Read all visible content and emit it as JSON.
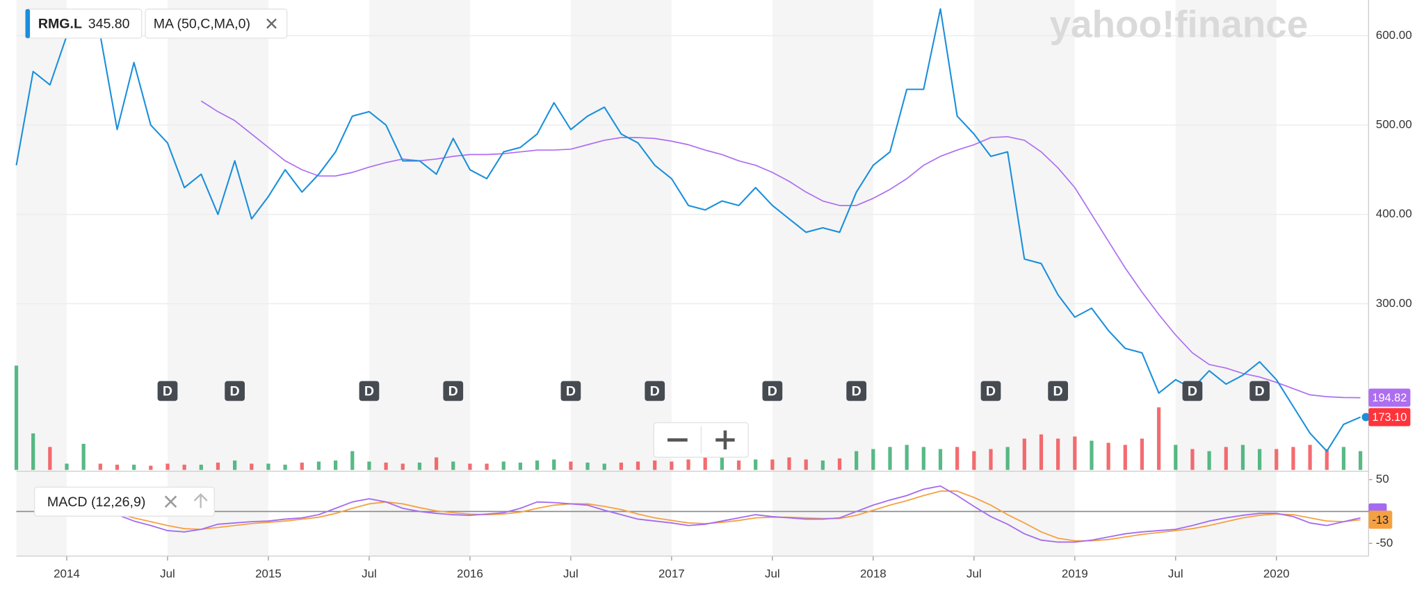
{
  "logo": "yahoo!finance",
  "chart_data": [
    {
      "type": "line",
      "x": [
        "2013-10",
        "2013-11",
        "2013-12",
        "2014-01",
        "2014-02",
        "2014-03",
        "2014-04",
        "2014-05",
        "2014-06",
        "2014-07",
        "2014-08",
        "2014-09",
        "2014-10",
        "2014-11",
        "2014-12",
        "2015-01",
        "2015-02",
        "2015-03",
        "2015-04",
        "2015-05",
        "2015-06",
        "2015-07",
        "2015-08",
        "2015-09",
        "2015-10",
        "2015-11",
        "2015-12",
        "2016-01",
        "2016-02",
        "2016-03",
        "2016-04",
        "2016-05",
        "2016-06",
        "2016-07",
        "2016-08",
        "2016-09",
        "2016-10",
        "2016-11",
        "2016-12",
        "2017-01",
        "2017-02",
        "2017-03",
        "2017-04",
        "2017-05",
        "2017-06",
        "2017-07",
        "2017-08",
        "2017-09",
        "2017-10",
        "2017-11",
        "2017-12",
        "2018-01",
        "2018-02",
        "2018-03",
        "2018-04",
        "2018-05",
        "2018-06",
        "2018-07",
        "2018-08",
        "2018-09",
        "2018-10",
        "2018-11",
        "2018-12",
        "2019-01",
        "2019-02",
        "2019-03",
        "2019-04",
        "2019-05",
        "2019-06",
        "2019-07",
        "2019-08",
        "2019-09",
        "2019-10",
        "2019-11",
        "2019-12",
        "2020-01",
        "2020-02",
        "2020-03",
        "2020-04",
        "2020-05",
        "2020-06"
      ],
      "series": [
        {
          "name": "RMG.L",
          "legend_value": "345.80",
          "color": "#1a8fdb",
          "last_label": "173.10",
          "last_color": "#ff333a",
          "values": [
            455,
            560,
            545,
            600,
            605,
            600,
            495,
            570,
            500,
            480,
            430,
            445,
            400,
            460,
            395,
            420,
            450,
            425,
            445,
            470,
            510,
            515,
            500,
            460,
            460,
            445,
            485,
            450,
            440,
            470,
            475,
            490,
            525,
            495,
            510,
            520,
            490,
            480,
            455,
            440,
            410,
            405,
            415,
            410,
            430,
            410,
            395,
            380,
            385,
            380,
            425,
            455,
            470,
            540,
            540,
            630,
            510,
            490,
            465,
            470,
            350,
            345,
            310,
            285,
            295,
            270,
            250,
            245,
            200,
            215,
            205,
            225,
            210,
            220,
            235,
            215,
            185,
            155,
            135,
            165,
            173.1
          ]
        },
        {
          "name": "MA (50,C,MA,0)",
          "color": "#ad6ef0",
          "values": [
            null,
            null,
            null,
            null,
            null,
            null,
            null,
            null,
            null,
            null,
            null,
            527,
            515,
            505,
            490,
            475,
            460,
            450,
            443,
            443,
            447,
            453,
            458,
            462,
            460,
            462,
            465,
            467,
            467,
            468,
            470,
            472,
            472,
            473,
            478,
            483,
            486,
            486,
            485,
            482,
            478,
            472,
            467,
            460,
            455,
            447,
            437,
            425,
            415,
            410,
            410,
            418,
            428,
            440,
            455,
            465,
            472,
            478,
            486,
            487,
            483,
            470,
            452,
            430,
            400,
            370,
            340,
            313,
            288,
            265,
            245,
            232,
            228,
            222,
            218,
            212,
            205,
            198,
            196,
            195,
            194.82
          ]
        }
      ],
      "volume": {
        "up_color": "#2ea866",
        "down_color": "#f0474c",
        "values": [
          100,
          35,
          22,
          6,
          25,
          6,
          5,
          5,
          4,
          6,
          5,
          5,
          7,
          9,
          6,
          6,
          5,
          7,
          8,
          9,
          18,
          8,
          7,
          6,
          7,
          12,
          8,
          6,
          6,
          8,
          7,
          9,
          10,
          8,
          7,
          6,
          7,
          8,
          9,
          8,
          10,
          12,
          15,
          9,
          10,
          10,
          12,
          10,
          9,
          11,
          18,
          20,
          22,
          24,
          22,
          20,
          22,
          18,
          20,
          22,
          30,
          34,
          30,
          32,
          28,
          26,
          24,
          30,
          60,
          24,
          20,
          18,
          22,
          24,
          20,
          20,
          22,
          24,
          20,
          22,
          18
        ]
      },
      "events": [
        {
          "x": "2014-07",
          "label": "D"
        },
        {
          "x": "2014-11",
          "label": "D"
        },
        {
          "x": "2015-07",
          "label": "D"
        },
        {
          "x": "2015-12",
          "label": "D"
        },
        {
          "x": "2016-07",
          "label": "D"
        },
        {
          "x": "2016-12",
          "label": "D"
        },
        {
          "x": "2017-07",
          "label": "D"
        },
        {
          "x": "2017-12",
          "label": "D"
        },
        {
          "x": "2018-08",
          "label": "D"
        },
        {
          "x": "2018-12",
          "label": "D"
        },
        {
          "x": "2019-08",
          "label": "D"
        },
        {
          "x": "2019-12",
          "label": "D"
        }
      ],
      "xlim": [
        "2013-10",
        "2020-06"
      ],
      "xticks": [
        {
          "value": "2014-01",
          "label": "2014"
        },
        {
          "value": "2014-07",
          "label": "Jul"
        },
        {
          "value": "2015-01",
          "label": "2015"
        },
        {
          "value": "2015-07",
          "label": "Jul"
        },
        {
          "value": "2016-01",
          "label": "2016"
        },
        {
          "value": "2016-07",
          "label": "Jul"
        },
        {
          "value": "2017-01",
          "label": "2017"
        },
        {
          "value": "2017-07",
          "label": "Jul"
        },
        {
          "value": "2018-01",
          "label": "2018"
        },
        {
          "value": "2018-07",
          "label": "Jul"
        },
        {
          "value": "2019-01",
          "label": "2019"
        },
        {
          "value": "2019-07",
          "label": "Jul"
        },
        {
          "value": "2020-01",
          "label": "2020"
        }
      ],
      "ylim": [
        114,
        640
      ],
      "yticks": [
        {
          "value": 300,
          "label": "300.00"
        },
        {
          "value": 400,
          "label": "400.00"
        },
        {
          "value": 500,
          "label": "500.00"
        },
        {
          "value": 600,
          "label": "600.00"
        }
      ],
      "grid": true
    },
    {
      "type": "line",
      "title": "MACD (12,26,9)",
      "series": [
        {
          "color": "#a46af0",
          "values": [
            null,
            null,
            null,
            null,
            null,
            null,
            -5,
            -15,
            -22,
            -30,
            -32,
            -28,
            -20,
            -18,
            -16,
            -15,
            -12,
            -10,
            -5,
            5,
            15,
            20,
            15,
            5,
            0,
            -3,
            -5,
            -6,
            -4,
            -2,
            5,
            15,
            14,
            12,
            10,
            2,
            -5,
            -12,
            -15,
            -18,
            -22,
            -20,
            -15,
            -10,
            -5,
            -8,
            -10,
            -12,
            -12,
            -10,
            0,
            10,
            18,
            25,
            35,
            40,
            25,
            8,
            -8,
            -20,
            -35,
            -45,
            -48,
            -48,
            -45,
            -40,
            -35,
            -32,
            -30,
            -28,
            -22,
            -15,
            -10,
            -6,
            -3,
            -3,
            -8,
            -18,
            -22,
            -16,
            -10
          ]
        },
        {
          "color": "#f5a142",
          "values": [
            null,
            null,
            null,
            null,
            null,
            null,
            -3,
            -10,
            -16,
            -22,
            -27,
            -28,
            -25,
            -22,
            -19,
            -17,
            -15,
            -12,
            -9,
            -3,
            5,
            12,
            15,
            12,
            6,
            1,
            -2,
            -4,
            -5,
            -4,
            -1,
            5,
            10,
            12,
            12,
            8,
            3,
            -4,
            -10,
            -14,
            -18,
            -19,
            -17,
            -14,
            -10,
            -9,
            -9,
            -10,
            -11,
            -11,
            -6,
            2,
            10,
            17,
            25,
            32,
            32,
            22,
            10,
            -5,
            -18,
            -32,
            -42,
            -46,
            -46,
            -44,
            -40,
            -36,
            -33,
            -30,
            -27,
            -22,
            -16,
            -10,
            -6,
            -4,
            -5,
            -10,
            -15,
            -16,
            -13
          ]
        }
      ],
      "ylim": [
        -70,
        61
      ],
      "yticks": [
        -50,
        50
      ]
    }
  ]
}
